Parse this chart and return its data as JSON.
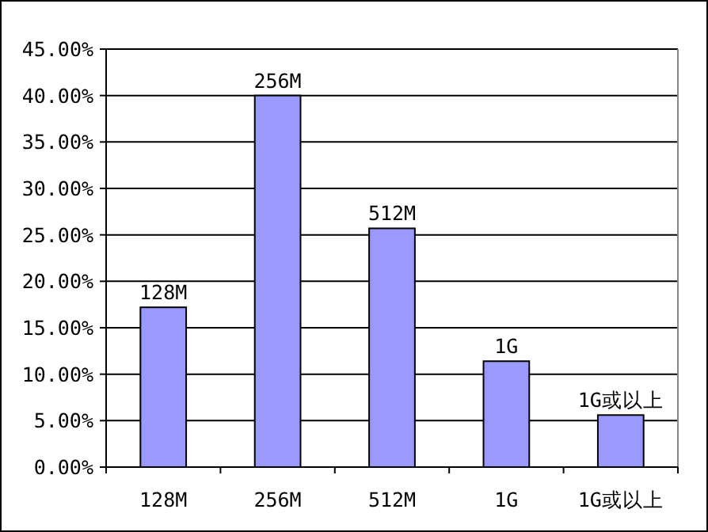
{
  "chart_data": {
    "type": "bar",
    "categories": [
      "128M",
      "256M",
      "512M",
      "1G",
      "1G或以上"
    ],
    "values": [
      17.2,
      40.0,
      25.7,
      11.4,
      5.6
    ],
    "color": "#9999ff",
    "ylim": [
      0,
      45
    ],
    "yticks": [
      {
        "value": 0,
        "label": "0.00%"
      },
      {
        "value": 5,
        "label": "5.00%"
      },
      {
        "value": 10,
        "label": "10.00%"
      },
      {
        "value": 15,
        "label": "15.00%"
      },
      {
        "value": 20,
        "label": "20.00%"
      },
      {
        "value": 25,
        "label": "25.00%"
      },
      {
        "value": 30,
        "label": "30.00%"
      },
      {
        "value": 35,
        "label": "35.00%"
      },
      {
        "value": 40,
        "label": "40.00%"
      },
      {
        "value": 45,
        "label": "45.00%"
      }
    ],
    "grid": "y",
    "annotations": [
      {
        "text": "128M",
        "x": "128M",
        "y": 17.2
      },
      {
        "text": "256M",
        "x": "256M",
        "y": 40.0
      },
      {
        "text": "512M",
        "x": "512M",
        "y": 25.7
      },
      {
        "text": "1G",
        "x": "1G",
        "y": 11.4
      },
      {
        "text": "1G或以上",
        "x": "1G或以上",
        "y": 5.6
      }
    ]
  }
}
